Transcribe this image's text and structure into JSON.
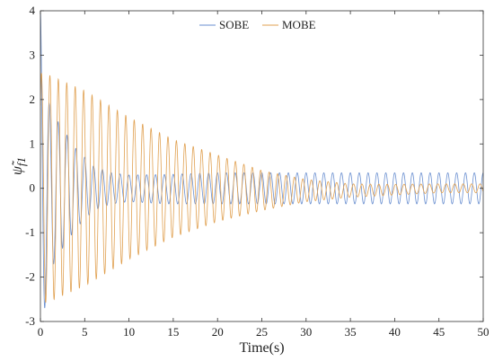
{
  "chart_data": {
    "type": "line",
    "xlabel": "Time(s)",
    "ylabel": "ψ̃_f1",
    "xlim": [
      0,
      50
    ],
    "ylim": [
      -3,
      4
    ],
    "x_ticks": [
      "0",
      "5",
      "10",
      "15",
      "20",
      "25",
      "30",
      "35",
      "40",
      "45",
      "50"
    ],
    "y_ticks": [
      "-3",
      "-2",
      "-1",
      "0",
      "1",
      "2",
      "3",
      "4"
    ],
    "grid": false,
    "legend_position": "top-center",
    "series": [
      {
        "name": "SOBE",
        "color": "#6a8fd0",
        "description_points": {
          "t": [
            0,
            0.3,
            1.0,
            2,
            4,
            6,
            8,
            10,
            14,
            20,
            30,
            40,
            50
          ],
          "amplitude": [
            4.0,
            3.0,
            1.9,
            1.5,
            0.9,
            0.5,
            0.35,
            0.3,
            0.33,
            0.35,
            0.35,
            0.35,
            0.35
          ],
          "offset": [
            0,
            0,
            0,
            0,
            0,
            0,
            0,
            0,
            -0.02,
            0,
            0,
            0,
            0
          ]
        },
        "frequency_hz": 1.0
      },
      {
        "name": "MOBE",
        "color": "#e0a050",
        "description_points": {
          "t": [
            0,
            1,
            5,
            10,
            15,
            20,
            25,
            30,
            35,
            40,
            45,
            50
          ],
          "amplitude": [
            2.6,
            2.55,
            2.2,
            1.6,
            1.1,
            0.75,
            0.45,
            0.25,
            0.15,
            0.12,
            0.1,
            0.1
          ],
          "offset": [
            0,
            0,
            0,
            0,
            0,
            0,
            -0.05,
            -0.05,
            -0.05,
            -0.03,
            0,
            0
          ]
        },
        "frequency_hz": 1.05
      }
    ]
  }
}
